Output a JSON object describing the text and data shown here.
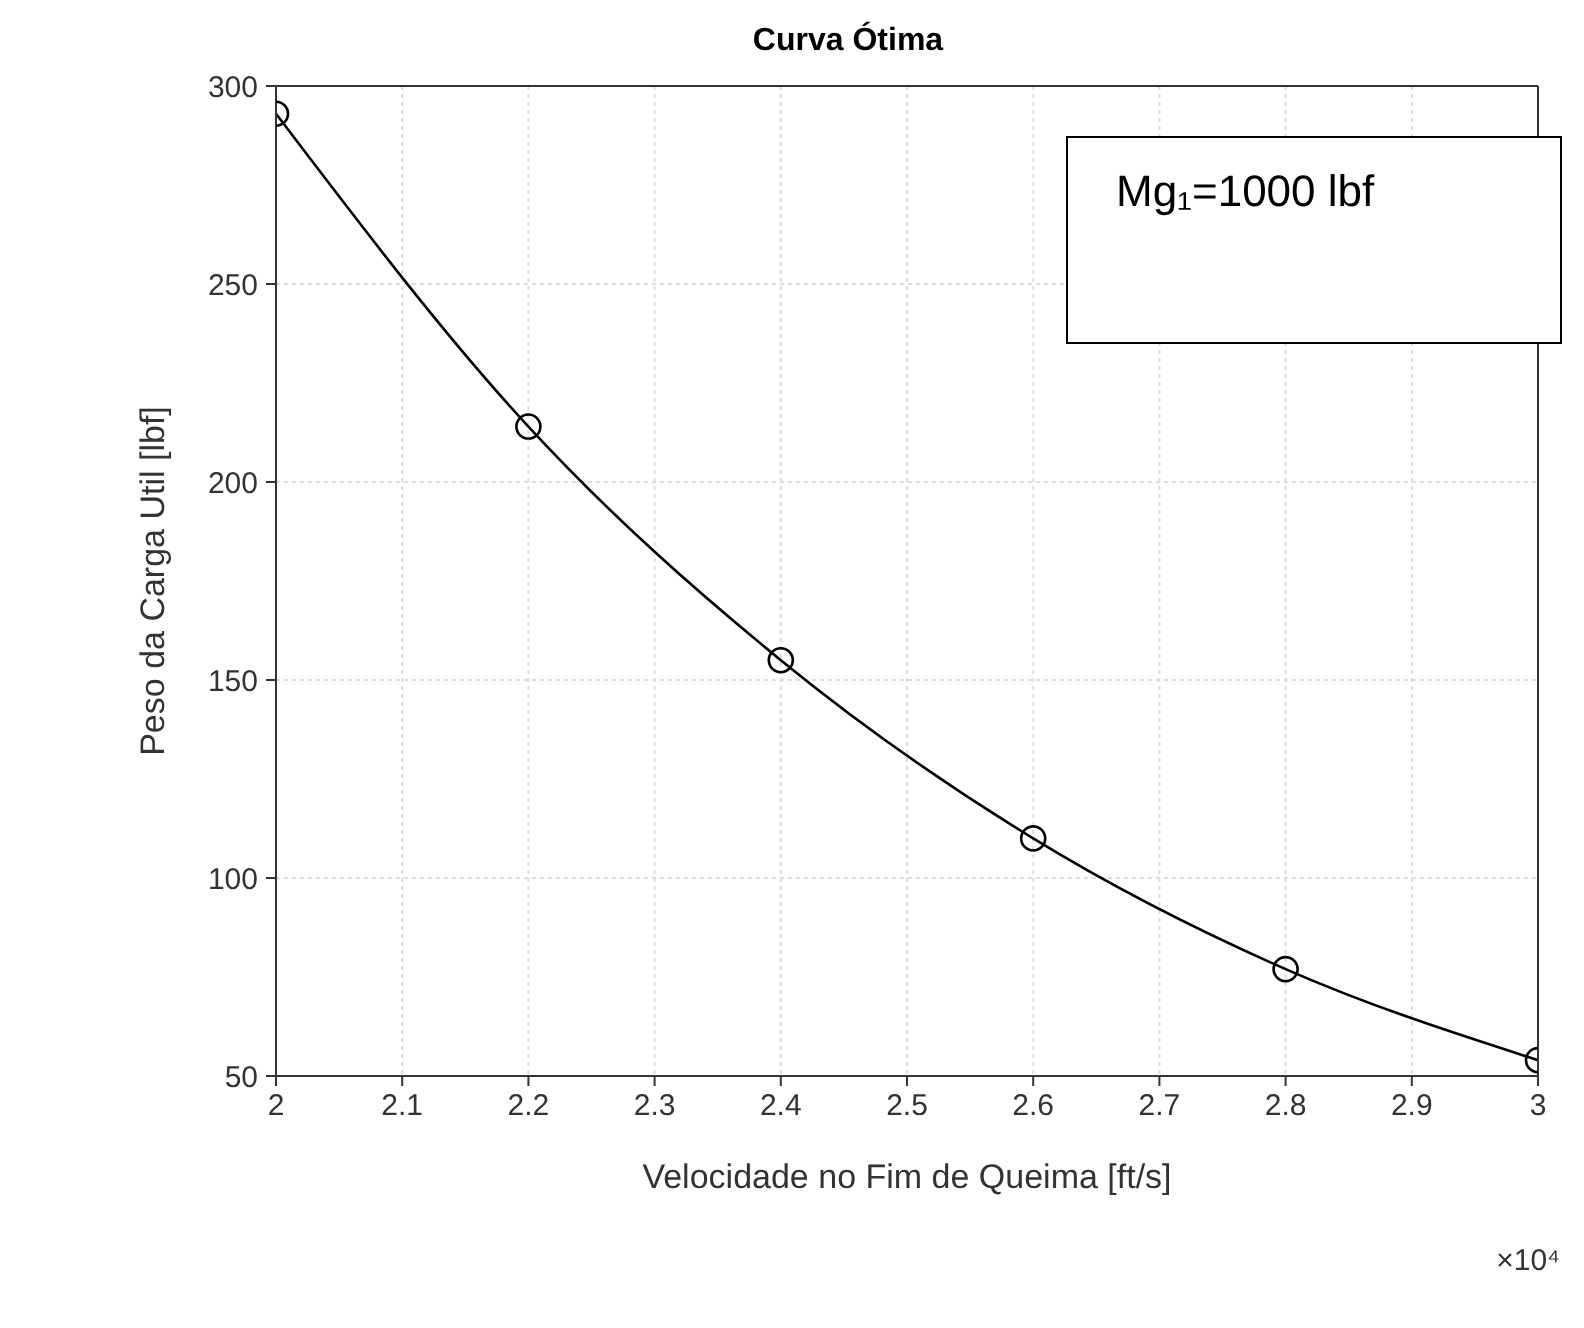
{
  "chart_data": {
    "type": "line",
    "title": "Curva Ótima",
    "xlabel": "Velocidade no Fim de Queima [ft/s]",
    "ylabel": "Peso da Carga Util [lbf]",
    "x": [
      2,
      2.2,
      2.4,
      2.6,
      2.8,
      3
    ],
    "series": [
      {
        "color": "#000000",
        "values": [
          293,
          214,
          155,
          110,
          77,
          54
        ]
      }
    ],
    "xlim": [
      2,
      3
    ],
    "xticks": [
      2,
      2.1,
      2.2,
      2.3,
      2.4,
      2.5,
      2.6,
      2.7,
      2.8,
      2.9,
      3
    ],
    "ylim": [
      50,
      300
    ],
    "yticks": [
      50,
      100,
      150,
      200,
      250,
      300
    ],
    "grid": true,
    "marker": "circle",
    "line_style": "solid",
    "annotations": [
      "Mg₁=1000 lbf",
      "×10⁴"
    ]
  }
}
